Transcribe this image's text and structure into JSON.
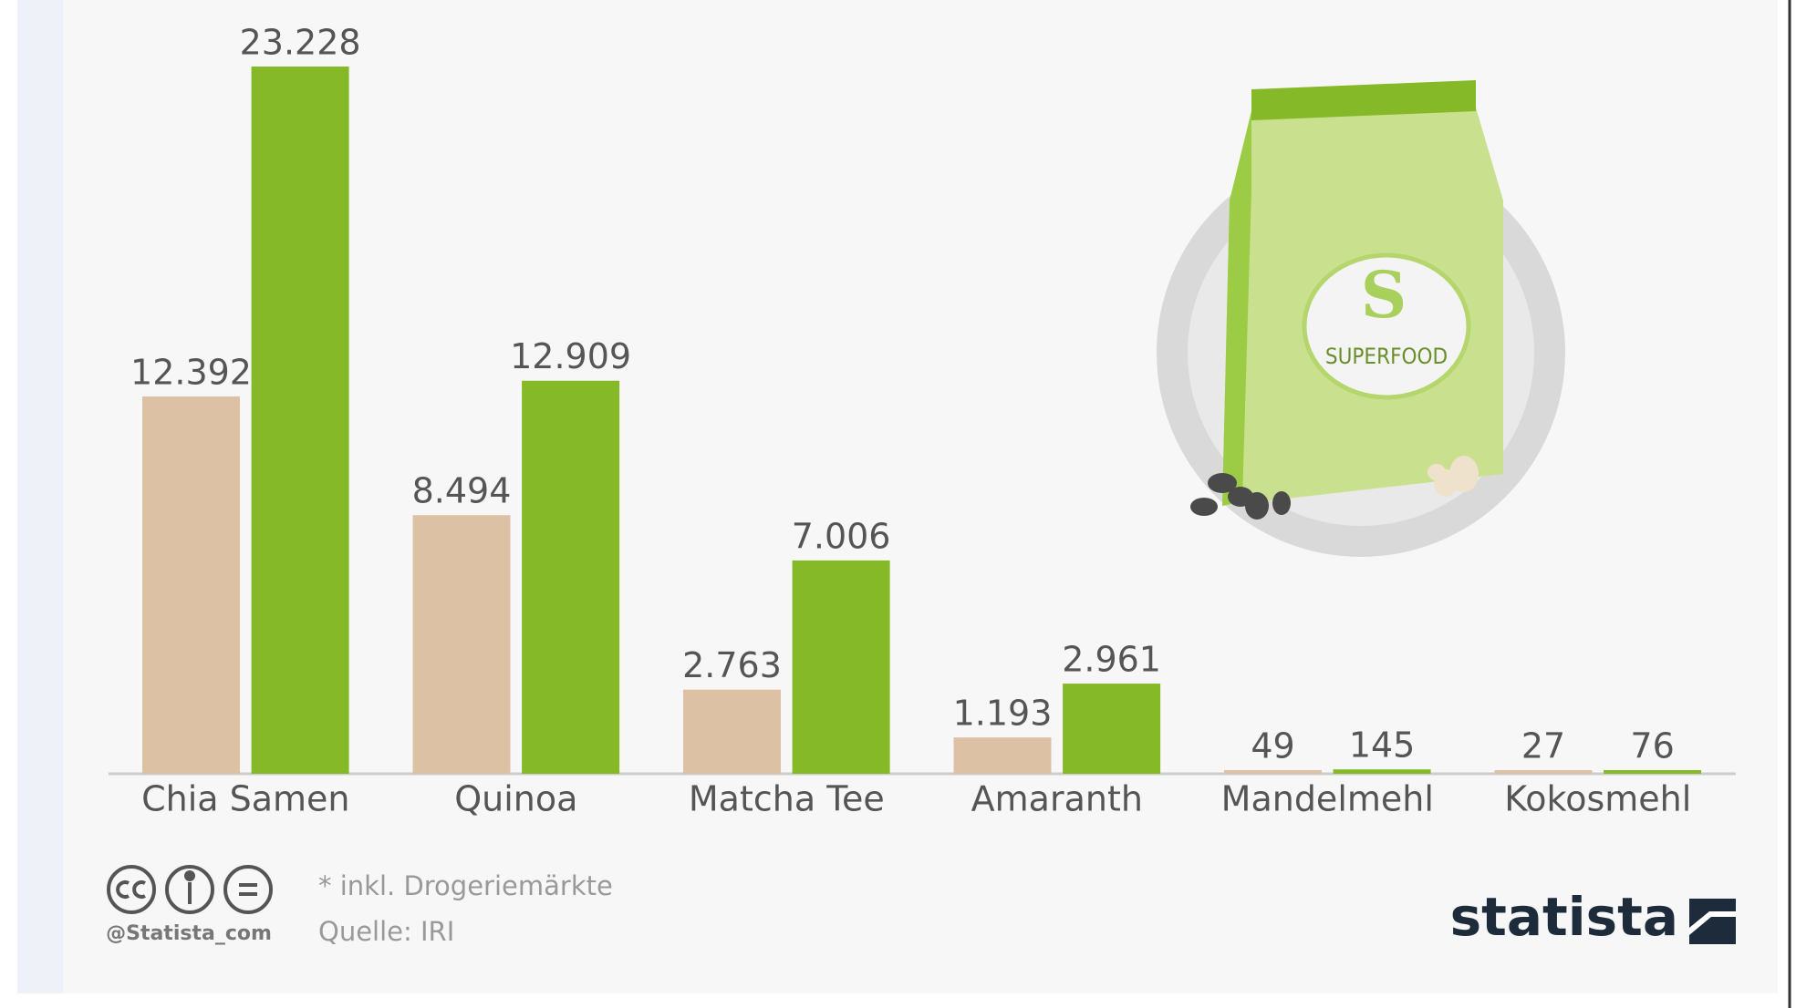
{
  "chart_data": {
    "type": "bar",
    "categories": [
      "Chia Samen",
      "Quinoa",
      "Matcha Tee",
      "Amaranth",
      "Mandelmehl",
      "Kokosmehl"
    ],
    "series": [
      {
        "color": "#dcc1a4",
        "values": [
          12392,
          8494,
          2763,
          1193,
          49,
          27
        ],
        "value_labels": [
          "12.392",
          "8.494",
          "2.763",
          "1.193",
          "49",
          "27"
        ]
      },
      {
        "color": "#86b927",
        "values": [
          23228,
          12909,
          7006,
          2961,
          145,
          76
        ],
        "value_labels": [
          "23.228",
          "12.909",
          "7.006",
          "2.961",
          "145",
          "76"
        ]
      }
    ],
    "footnote": "* inkl. Drogeriemärkte",
    "source": "Quelle: IRI",
    "handle": "@Statista_com",
    "brand": "statista",
    "illustration": {
      "letter": "S",
      "label": "SUPERFOOD"
    }
  }
}
